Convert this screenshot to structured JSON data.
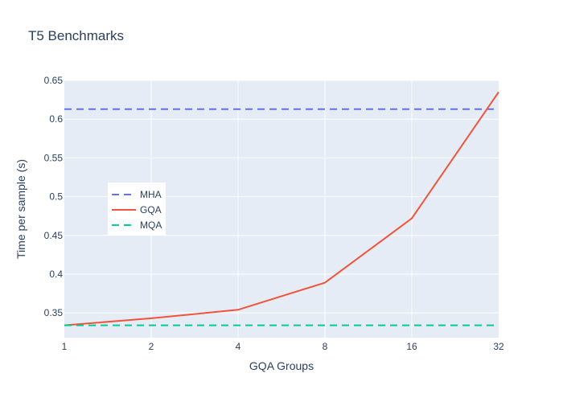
{
  "chart_data": {
    "type": "line",
    "title": "T5 Benchmarks",
    "xlabel": "GQA Groups",
    "ylabel": "Time per sample (s)",
    "x_scale": "log2",
    "x": [
      1,
      2,
      4,
      8,
      16,
      32
    ],
    "x_tick_labels": [
      "1",
      "2",
      "4",
      "8",
      "16",
      "32"
    ],
    "ylim": [
      0.318,
      0.65
    ],
    "y_ticks": [
      0.35,
      0.4,
      0.45,
      0.5,
      0.55,
      0.6,
      0.65
    ],
    "y_tick_labels": [
      "0.35",
      "0.4",
      "0.45",
      "0.5",
      "0.55",
      "0.6",
      "0.65"
    ],
    "grid": true,
    "legend_position": "left-middle",
    "series": [
      {
        "name": "MHA",
        "style": "dashed",
        "color": "#636efa",
        "values": [
          0.613,
          0.613,
          0.613,
          0.613,
          0.613,
          0.613
        ]
      },
      {
        "name": "GQA",
        "style": "solid",
        "color": "#ef553b",
        "values": [
          0.334,
          0.343,
          0.354,
          0.389,
          0.472,
          0.635
        ]
      },
      {
        "name": "MQA",
        "style": "dashed",
        "color": "#00cc96",
        "values": [
          0.334,
          0.334,
          0.334,
          0.334,
          0.334,
          0.334
        ]
      }
    ]
  }
}
